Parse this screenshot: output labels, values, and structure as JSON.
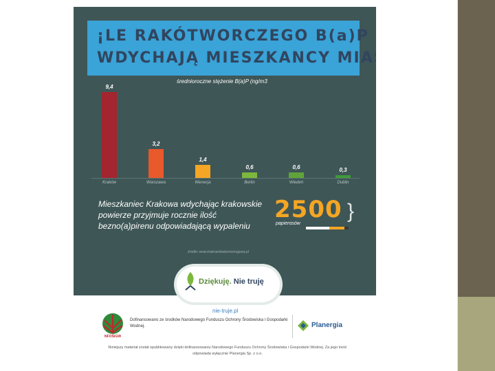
{
  "infographic": {
    "title_line1": "¡LE RAKÓTWORCZEGO B(a)P",
    "title_line2": "WDYCHAJĄ MIESZKANCY MIAST?",
    "chart_caption": "średnioroczne stężenie B(a)P (ng/m3",
    "fact_text": "Mieszkaniec Krakowa wdychając krakowskie powierze przyjmuje rocznie ilość bezno(a)pirenu odpowiadającą wypaleniu",
    "big_number": "2500",
    "big_number_unit": "papierosów",
    "source": "źródło: www.krakowskialarmsmogowy.pl",
    "campaign_slogan_part1": "Dziękuję.",
    "campaign_slogan_part2": " Nie truję",
    "campaign_site": "nie-truje.pl",
    "colors": {
      "board": "#3f5656",
      "title_bg": "#3aa3d7",
      "highlight": "#f5a624"
    }
  },
  "chart_data": {
    "type": "bar",
    "categories": [
      "Kraków",
      "Warszawa",
      "Wenecja",
      "Berlin",
      "Wiedeń",
      "Dublin"
    ],
    "values": [
      9.4,
      3.2,
      1.4,
      0.6,
      0.6,
      0.3
    ],
    "value_labels": [
      "9,4",
      "3,2",
      "1,4",
      "0,6",
      "0,6",
      "0,3"
    ],
    "colors": [
      "#a3252f",
      "#e8592c",
      "#f5a624",
      "#7cb83e",
      "#5fa33a",
      "#3f9a3a"
    ],
    "ylim": [
      0,
      10
    ]
  },
  "footer": {
    "funder_abbr": "NFOŚiGW",
    "funding_text": "Dofinansowano ze środków Narodowego Funduszu Ochrony Środowiska i Gospodarki Wodnej.",
    "partner_name": "Planergia",
    "disclaimer": "Niniejszy materiał został opublikowany dzięki dofinansowaniu Narodowego Funduszu Ochrony Środowiska i Gospodarki Wodnej. Za jego treść odpowiada wyłącznie Planergia Sp. z o.o."
  }
}
